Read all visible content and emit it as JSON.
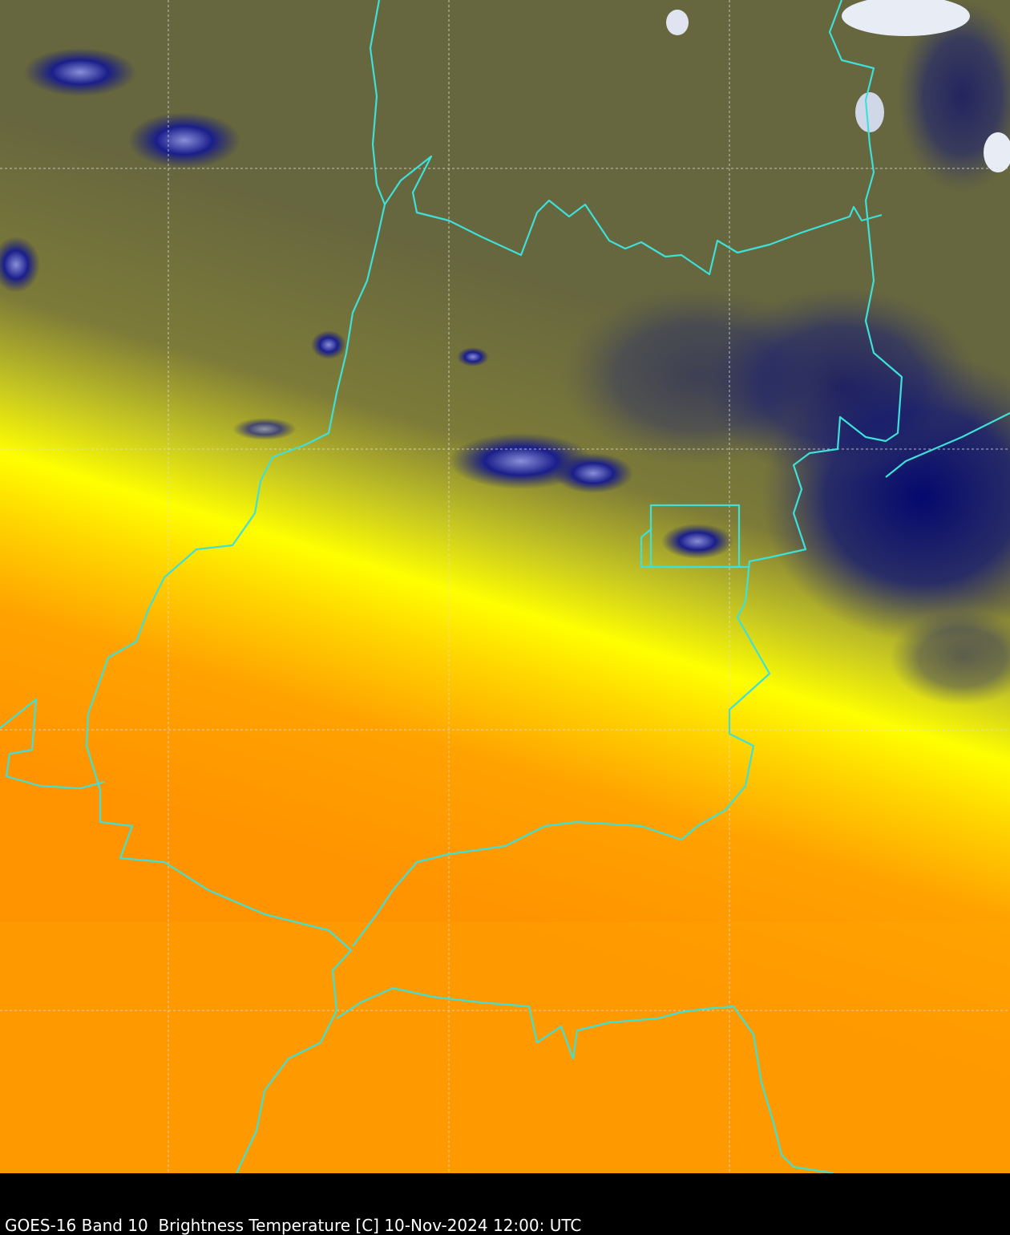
{
  "caption": "GOES-16 Band 10  Brightness Temperature [C] 10-Nov-2024 12:00: UTC"
}
